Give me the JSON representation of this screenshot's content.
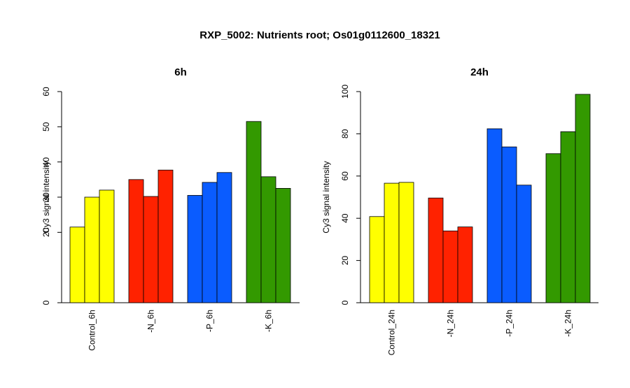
{
  "title": "RXP_5002: Nutrients root; Os01g0112600_18321",
  "chart_data": [
    {
      "type": "bar",
      "title": "6h",
      "ylabel": "Cy3 signal intensity",
      "xlabel": "",
      "ylim": [
        0,
        60
      ],
      "yticks": [
        "0",
        "20",
        "30",
        "40",
        "50",
        "60"
      ],
      "categories": [
        "Control_6h",
        "-N_6h",
        "-P_6h",
        "-K_6h"
      ],
      "colors": [
        "#ffff00",
        "#ff2200",
        "#0a5cff",
        "#339900"
      ],
      "values": [
        [
          21.5,
          30.0,
          32.0
        ],
        [
          35.0,
          30.2,
          37.7
        ],
        [
          30.5,
          34.2,
          37.0
        ],
        [
          51.5,
          35.8,
          32.5
        ]
      ]
    },
    {
      "type": "bar",
      "title": "24h",
      "ylabel": "Cy3 signal intensity",
      "xlabel": "",
      "ylim": [
        0,
        100
      ],
      "yticks": [
        "0",
        "20",
        "40",
        "60",
        "80",
        "100"
      ],
      "categories": [
        "Control_24h",
        "-N_24h",
        "-P_24h",
        "-K_24h"
      ],
      "colors": [
        "#ffff00",
        "#ff2200",
        "#0a5cff",
        "#339900"
      ],
      "values": [
        [
          40.8,
          56.6,
          57.0
        ],
        [
          49.6,
          34.0,
          35.9
        ],
        [
          82.4,
          73.8,
          55.7
        ],
        [
          70.6,
          81.0,
          98.7
        ]
      ]
    }
  ]
}
